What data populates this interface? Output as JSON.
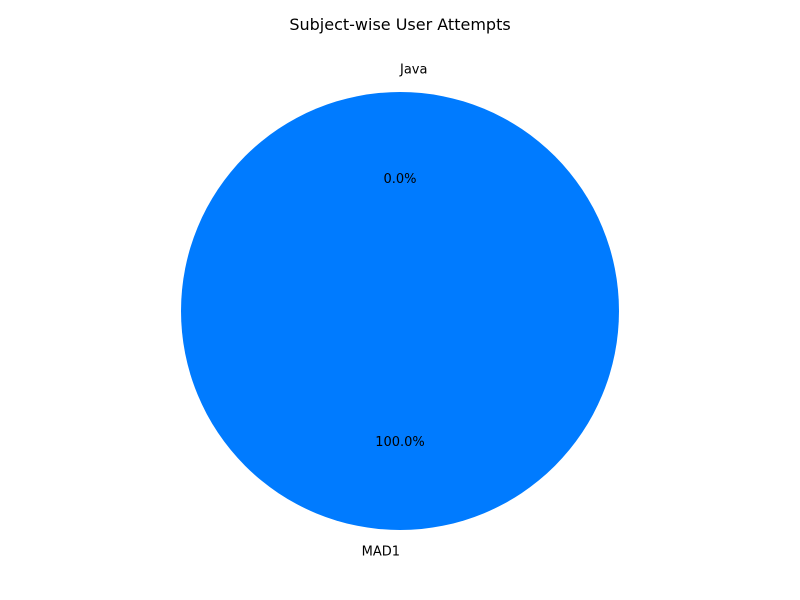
{
  "chart_data": {
    "type": "pie",
    "title": "Subject-wise User Attempts",
    "slices": [
      {
        "label": "Java",
        "value": 0.0,
        "percent_label": "0.0%",
        "color": "#ff0000"
      },
      {
        "label": "MAD1",
        "value": 100.0,
        "percent_label": "100.0%",
        "color": "#007bff"
      }
    ],
    "legend": "none"
  }
}
